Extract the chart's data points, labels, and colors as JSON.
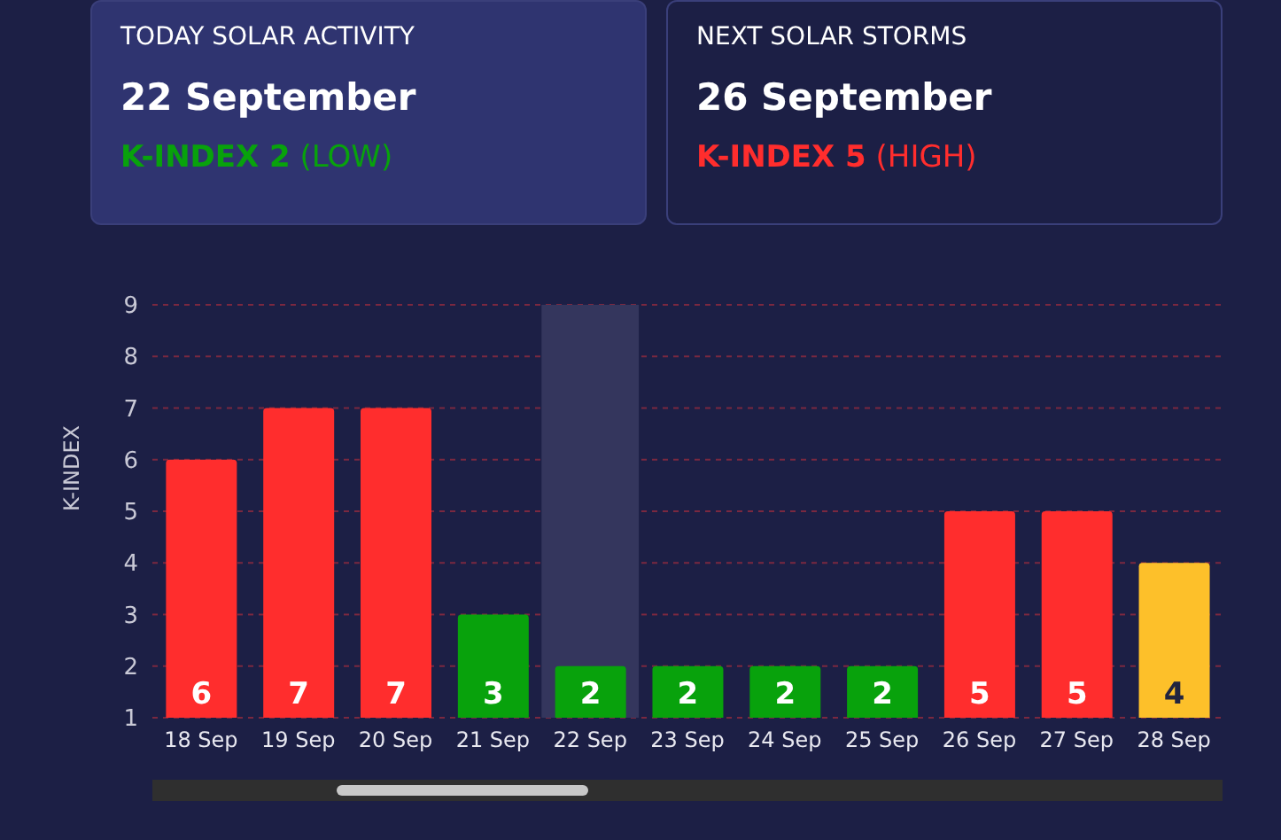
{
  "chart_data": {
    "type": "bar",
    "ylabel": "K-INDEX",
    "categories": [
      "18 Sep",
      "19 Sep",
      "20 Sep",
      "21 Sep",
      "22 Sep",
      "23 Sep",
      "24 Sep",
      "25 Sep",
      "26 Sep",
      "27 Sep",
      "28 Sep"
    ],
    "values": [
      6,
      7,
      7,
      3,
      2,
      2,
      2,
      2,
      5,
      5,
      4
    ],
    "colors": [
      "#ff2d2d",
      "#ff2d2d",
      "#ff2d2d",
      "#08a20c",
      "#08a20c",
      "#08a20c",
      "#08a20c",
      "#08a20c",
      "#ff2d2d",
      "#ff2d2d",
      "#fdc02a"
    ],
    "ylim": [
      1,
      9
    ],
    "yticks": [
      1,
      2,
      3,
      4,
      5,
      6,
      7,
      8,
      9
    ],
    "grid": "y",
    "data_labels": true,
    "bands": [
      {
        "axis": "x",
        "from": "22 Sep",
        "to": "22 Sep",
        "color": "#34365d"
      }
    ],
    "annotations": [
      "TODAY SOLAR ACTIVITY",
      "22 September",
      "K-INDEX 2",
      "(LOW)",
      "NEXT SOLAR STORMS",
      "26 September",
      "K-INDEX 5",
      "(HIGH)"
    ]
  }
}
